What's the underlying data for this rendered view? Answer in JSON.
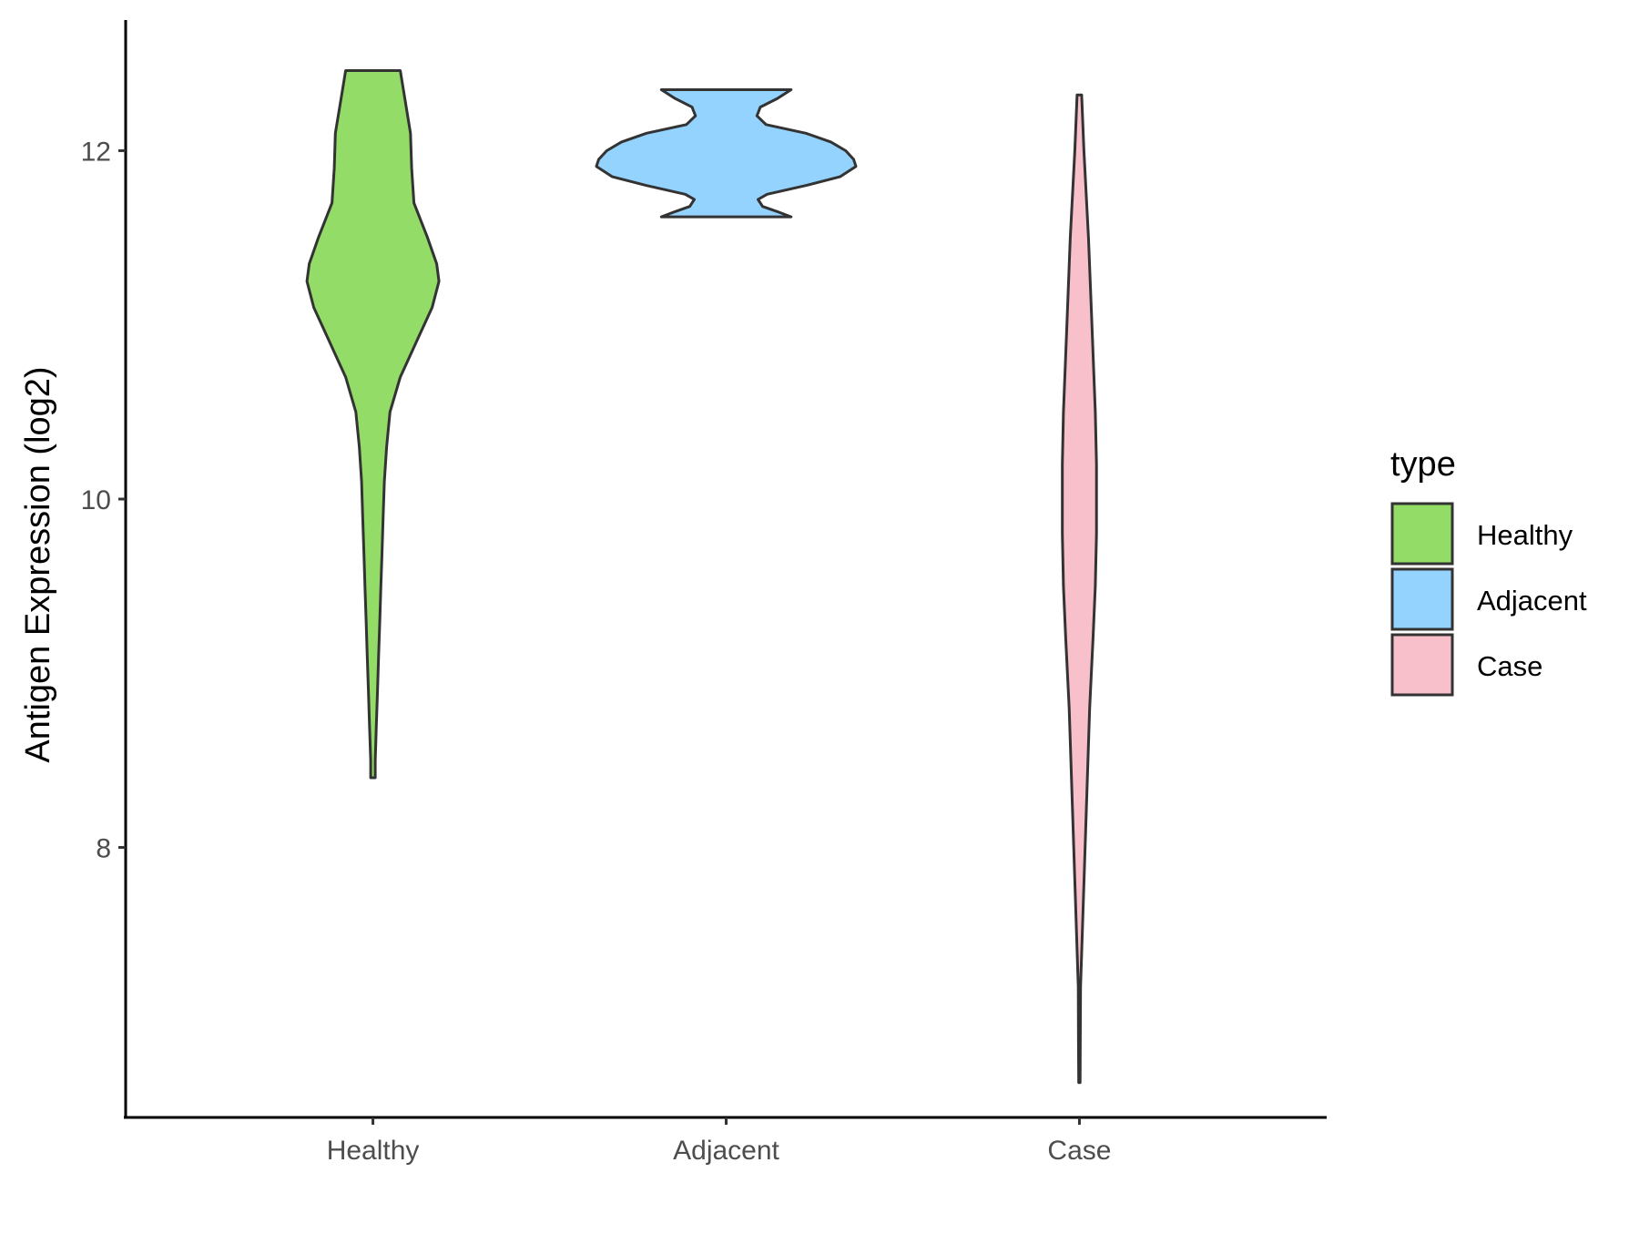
{
  "chart_data": {
    "type": "violin",
    "title": "",
    "xlabel": "",
    "ylabel": "Antigen Expression (log2)",
    "ylim": [
      6.45,
      12.75
    ],
    "yticks": [
      8,
      10,
      12
    ],
    "grid": false,
    "categories": [
      "Healthy",
      "Adjacent",
      "Case"
    ],
    "legend": {
      "title": "type",
      "placement": "right",
      "entries": [
        {
          "label": "Healthy",
          "color": "#92dc67"
        },
        {
          "label": "Adjacent",
          "color": "#94d3fd"
        },
        {
          "label": "Case",
          "color": "#f8c0cb"
        }
      ]
    },
    "series": [
      {
        "name": "Healthy",
        "color": "#92dc67",
        "min": 8.4,
        "max": 12.46,
        "density_profile": [
          [
            12.46,
            0.24
          ],
          [
            12.3,
            0.28
          ],
          [
            12.1,
            0.33
          ],
          [
            11.9,
            0.34
          ],
          [
            11.7,
            0.36
          ],
          [
            11.5,
            0.48
          ],
          [
            11.35,
            0.56
          ],
          [
            11.25,
            0.58
          ],
          [
            11.1,
            0.52
          ],
          [
            10.9,
            0.38
          ],
          [
            10.7,
            0.24
          ],
          [
            10.5,
            0.15
          ],
          [
            10.3,
            0.12
          ],
          [
            10.1,
            0.1
          ],
          [
            9.9,
            0.09
          ],
          [
            9.7,
            0.08
          ],
          [
            9.5,
            0.07
          ],
          [
            9.3,
            0.06
          ],
          [
            9.1,
            0.05
          ],
          [
            8.9,
            0.04
          ],
          [
            8.7,
            0.03
          ],
          [
            8.5,
            0.02
          ],
          [
            8.4,
            0.02
          ]
        ]
      },
      {
        "name": "Adjacent",
        "color": "#94d3fd",
        "min": 11.62,
        "max": 12.35,
        "density_profile": [
          [
            12.35,
            0.57
          ],
          [
            12.3,
            0.45
          ],
          [
            12.25,
            0.3
          ],
          [
            12.2,
            0.27
          ],
          [
            12.15,
            0.35
          ],
          [
            12.1,
            0.7
          ],
          [
            12.05,
            0.92
          ],
          [
            12.0,
            1.05
          ],
          [
            11.95,
            1.12
          ],
          [
            11.91,
            1.14
          ],
          [
            11.85,
            1.0
          ],
          [
            11.8,
            0.7
          ],
          [
            11.75,
            0.36
          ],
          [
            11.72,
            0.28
          ],
          [
            11.68,
            0.32
          ],
          [
            11.65,
            0.45
          ],
          [
            11.62,
            0.57
          ]
        ]
      },
      {
        "name": "Case",
        "color": "#f8c0cb",
        "min": 6.65,
        "max": 12.32,
        "density_profile": [
          [
            12.32,
            0.02
          ],
          [
            12.0,
            0.04
          ],
          [
            11.5,
            0.08
          ],
          [
            11.0,
            0.11
          ],
          [
            10.5,
            0.14
          ],
          [
            10.2,
            0.15
          ],
          [
            9.8,
            0.15
          ],
          [
            9.5,
            0.14
          ],
          [
            9.2,
            0.12
          ],
          [
            8.8,
            0.09
          ],
          [
            8.4,
            0.07
          ],
          [
            8.0,
            0.05
          ],
          [
            7.6,
            0.03
          ],
          [
            7.2,
            0.01
          ],
          [
            6.9,
            0.008
          ],
          [
            6.65,
            0.006
          ]
        ]
      }
    ]
  }
}
